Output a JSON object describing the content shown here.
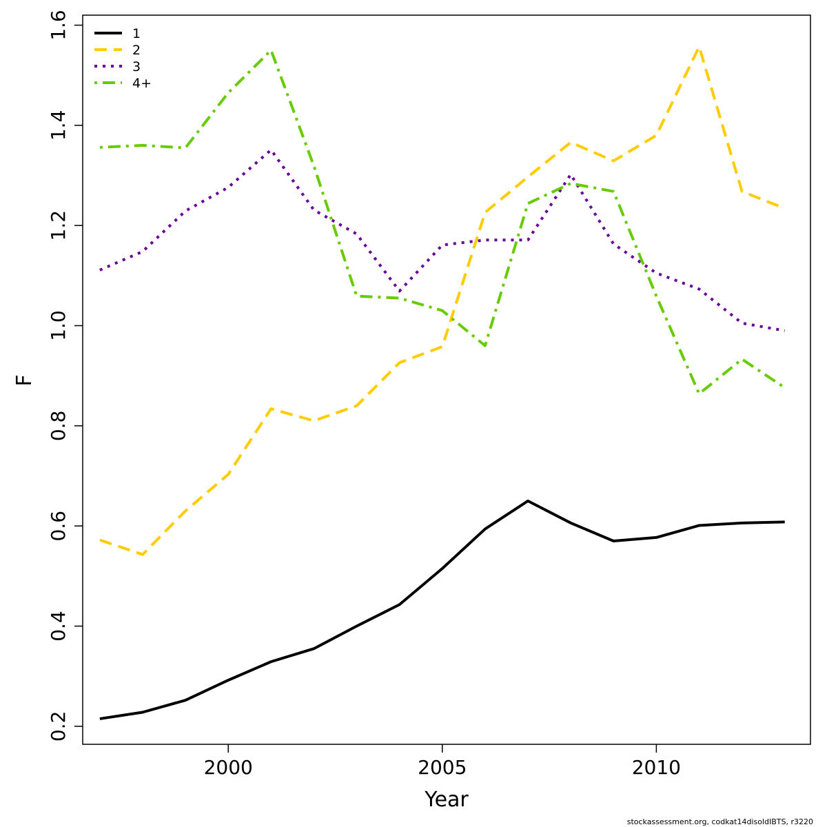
{
  "chart_data": {
    "type": "line",
    "xlabel": "Year",
    "ylabel": "F",
    "xlim": [
      1996.6,
      2013.6
    ],
    "ylim": [
      0.164,
      1.62
    ],
    "x_ticks": [
      2000,
      2005,
      2010
    ],
    "y_ticks": [
      0.2,
      0.4,
      0.6,
      0.8,
      1.0,
      1.2,
      1.4,
      1.6
    ],
    "x_tick_labels": [
      "2000",
      "2005",
      "2010"
    ],
    "y_tick_labels": [
      "0.2",
      "0.4",
      "0.6",
      "0.8",
      "1.0",
      "1.2",
      "1.4",
      "1.6"
    ],
    "grid": false,
    "legend_position": "top-left",
    "x": [
      1997,
      1998,
      1999,
      2000,
      2001,
      2002,
      2003,
      2004,
      2005,
      2006,
      2007,
      2008,
      2009,
      2010,
      2011,
      2012,
      2013
    ],
    "series": [
      {
        "name": "1",
        "color": "#000000",
        "dash": "solid",
        "values": [
          0.215,
          0.228,
          0.252,
          0.292,
          0.329,
          0.355,
          0.4,
          0.443,
          0.515,
          0.594,
          0.65,
          0.606,
          0.57,
          0.577,
          0.601,
          0.606,
          0.608
        ]
      },
      {
        "name": "2",
        "color": "#FFCC00",
        "dash": "dashed",
        "values": [
          0.572,
          0.543,
          0.63,
          0.703,
          0.834,
          0.81,
          0.84,
          0.926,
          0.958,
          1.226,
          1.297,
          1.366,
          1.329,
          1.38,
          1.557,
          1.268,
          1.234
        ]
      },
      {
        "name": "3",
        "color": "#660099",
        "dash": "dotted",
        "values": [
          1.111,
          1.148,
          1.229,
          1.276,
          1.351,
          1.231,
          1.183,
          1.069,
          1.161,
          1.171,
          1.171,
          1.302,
          1.163,
          1.105,
          1.073,
          1.005,
          0.99
        ]
      },
      {
        "name": "4+",
        "color": "#66CC00",
        "dash": "dotdash",
        "values": [
          1.356,
          1.36,
          1.355,
          1.465,
          1.55,
          1.319,
          1.059,
          1.055,
          1.03,
          0.96,
          1.244,
          1.284,
          1.268,
          1.059,
          0.864,
          0.933,
          0.876
        ]
      }
    ]
  },
  "footer": "stockassessment.org, codkat14disoldIBTS, r3220"
}
